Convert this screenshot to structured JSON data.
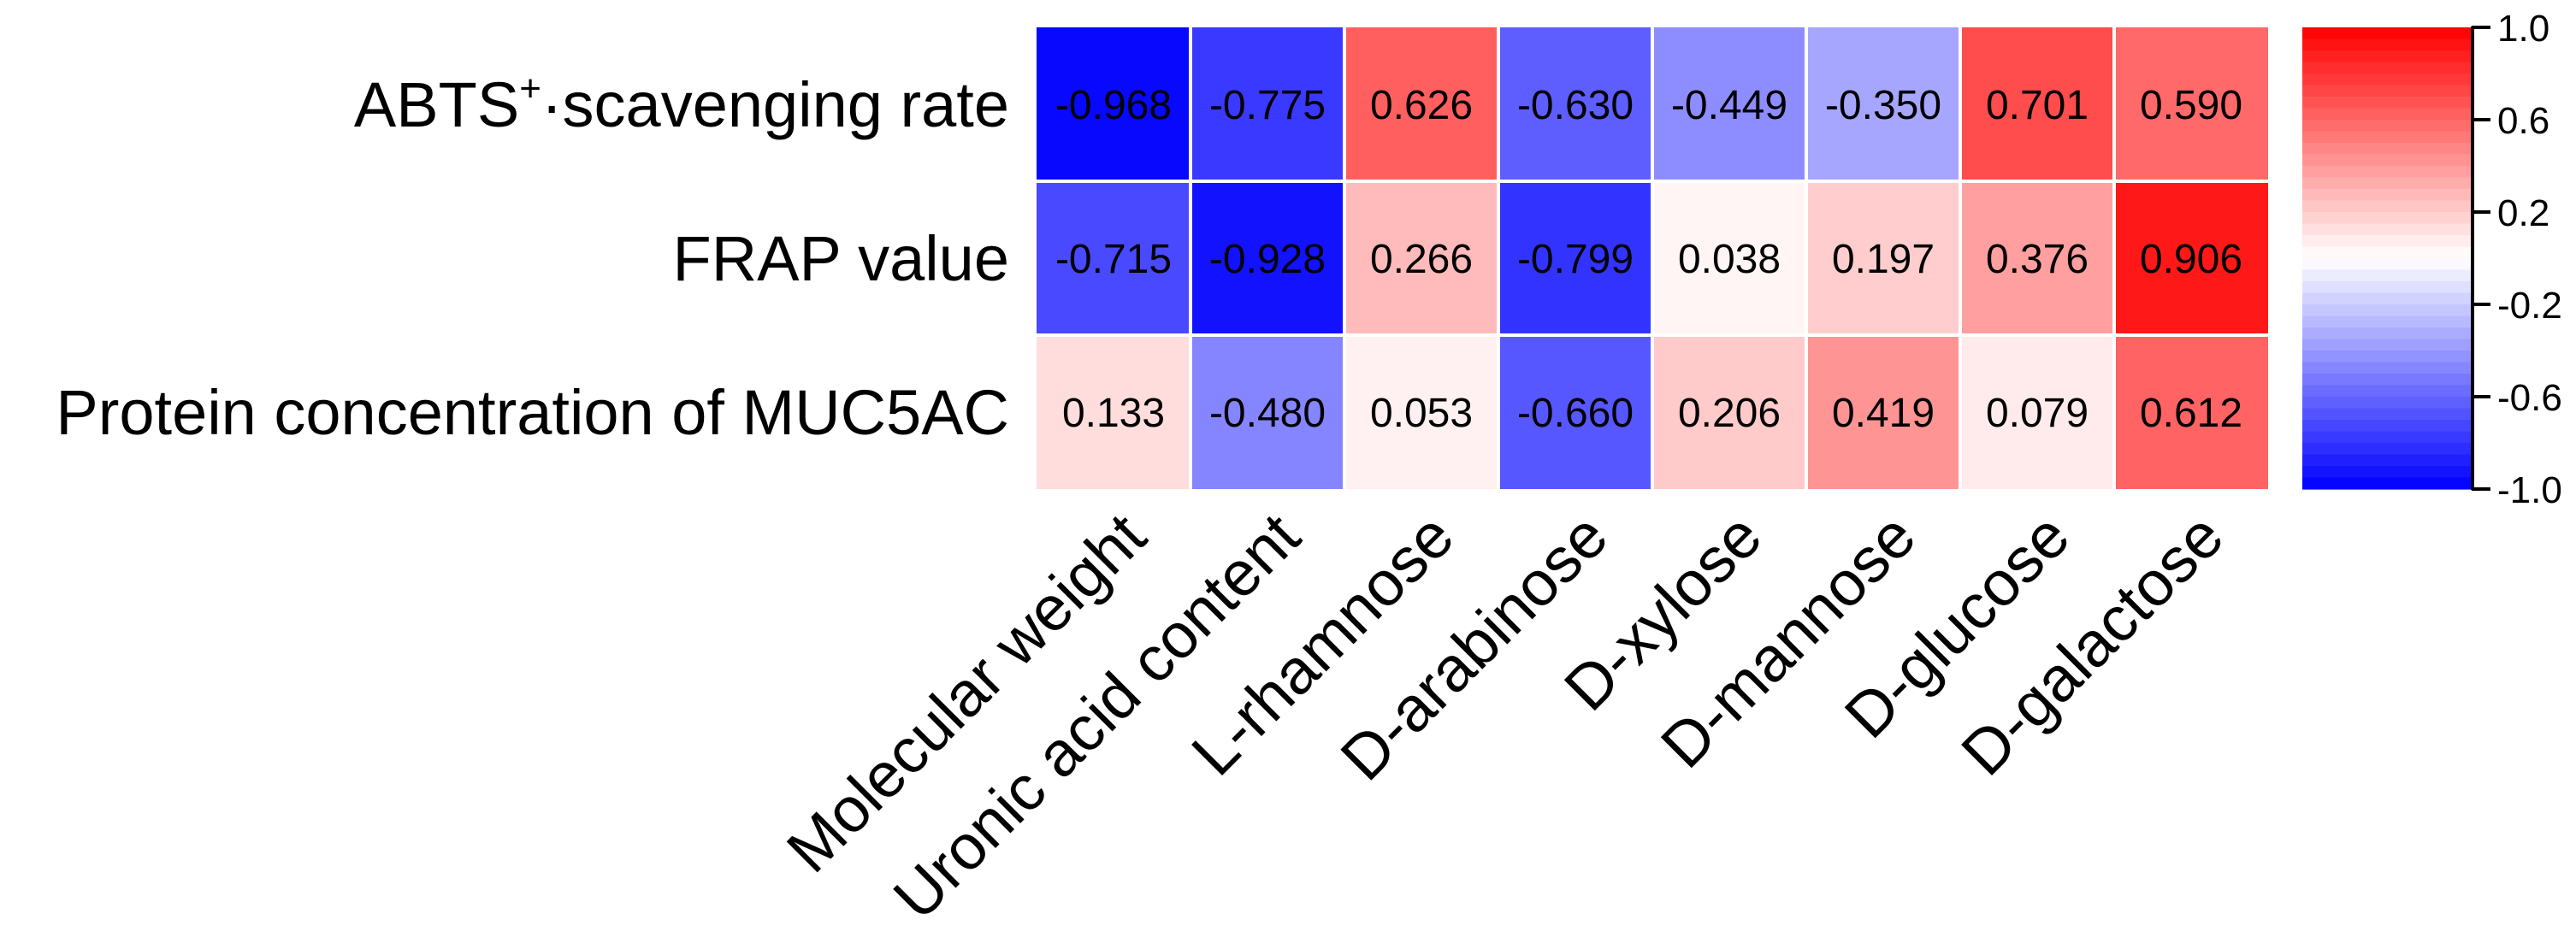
{
  "chart_data": {
    "type": "heatmap",
    "title": "",
    "rows": [
      {
        "label_main": "ABTS",
        "label_sup": "+",
        "label_rest": "·scavenging rate"
      },
      {
        "label_main": "FRAP value",
        "label_sup": "",
        "label_rest": ""
      },
      {
        "label_main": "Protein concentration of MUC5AC",
        "label_sup": "",
        "label_rest": ""
      }
    ],
    "columns": [
      "Molecular weight",
      "Uronic acid content",
      "L-rhamnose",
      "D-arabinose",
      "D-xylose",
      "D-mannose",
      "D-glucose",
      "D-galactose"
    ],
    "values": [
      [
        -0.968,
        -0.775,
        0.626,
        -0.63,
        -0.449,
        -0.35,
        0.701,
        0.59
      ],
      [
        -0.715,
        -0.928,
        0.266,
        -0.799,
        0.038,
        0.197,
        0.376,
        0.906
      ],
      [
        0.133,
        -0.48,
        0.053,
        -0.66,
        0.206,
        0.419,
        0.079,
        0.612
      ]
    ],
    "value_labels": [
      [
        "-0.968",
        "-0.775",
        "0.626",
        "-0.630",
        "-0.449",
        "-0.350",
        "0.701",
        "0.590"
      ],
      [
        "-0.715",
        "-0.928",
        "0.266",
        "-0.799",
        "0.038",
        "0.197",
        "0.376",
        "0.906"
      ],
      [
        "0.133",
        "-0.480",
        "0.053",
        "-0.660",
        "0.206",
        "0.419",
        "0.079",
        "0.612"
      ]
    ],
    "colorbar": {
      "range": [
        -1.0,
        1.0
      ],
      "steps": 40,
      "ticks": [
        1.0,
        0.6,
        0.2,
        -0.2,
        -0.6,
        -1.0
      ],
      "tick_labels": [
        "1.0",
        "0.6",
        "0.2",
        "-0.2",
        "-0.6",
        "-1.0"
      ],
      "low_color": "#0000ff",
      "mid_color": "#ffffff",
      "high_color": "#ff0000"
    }
  }
}
